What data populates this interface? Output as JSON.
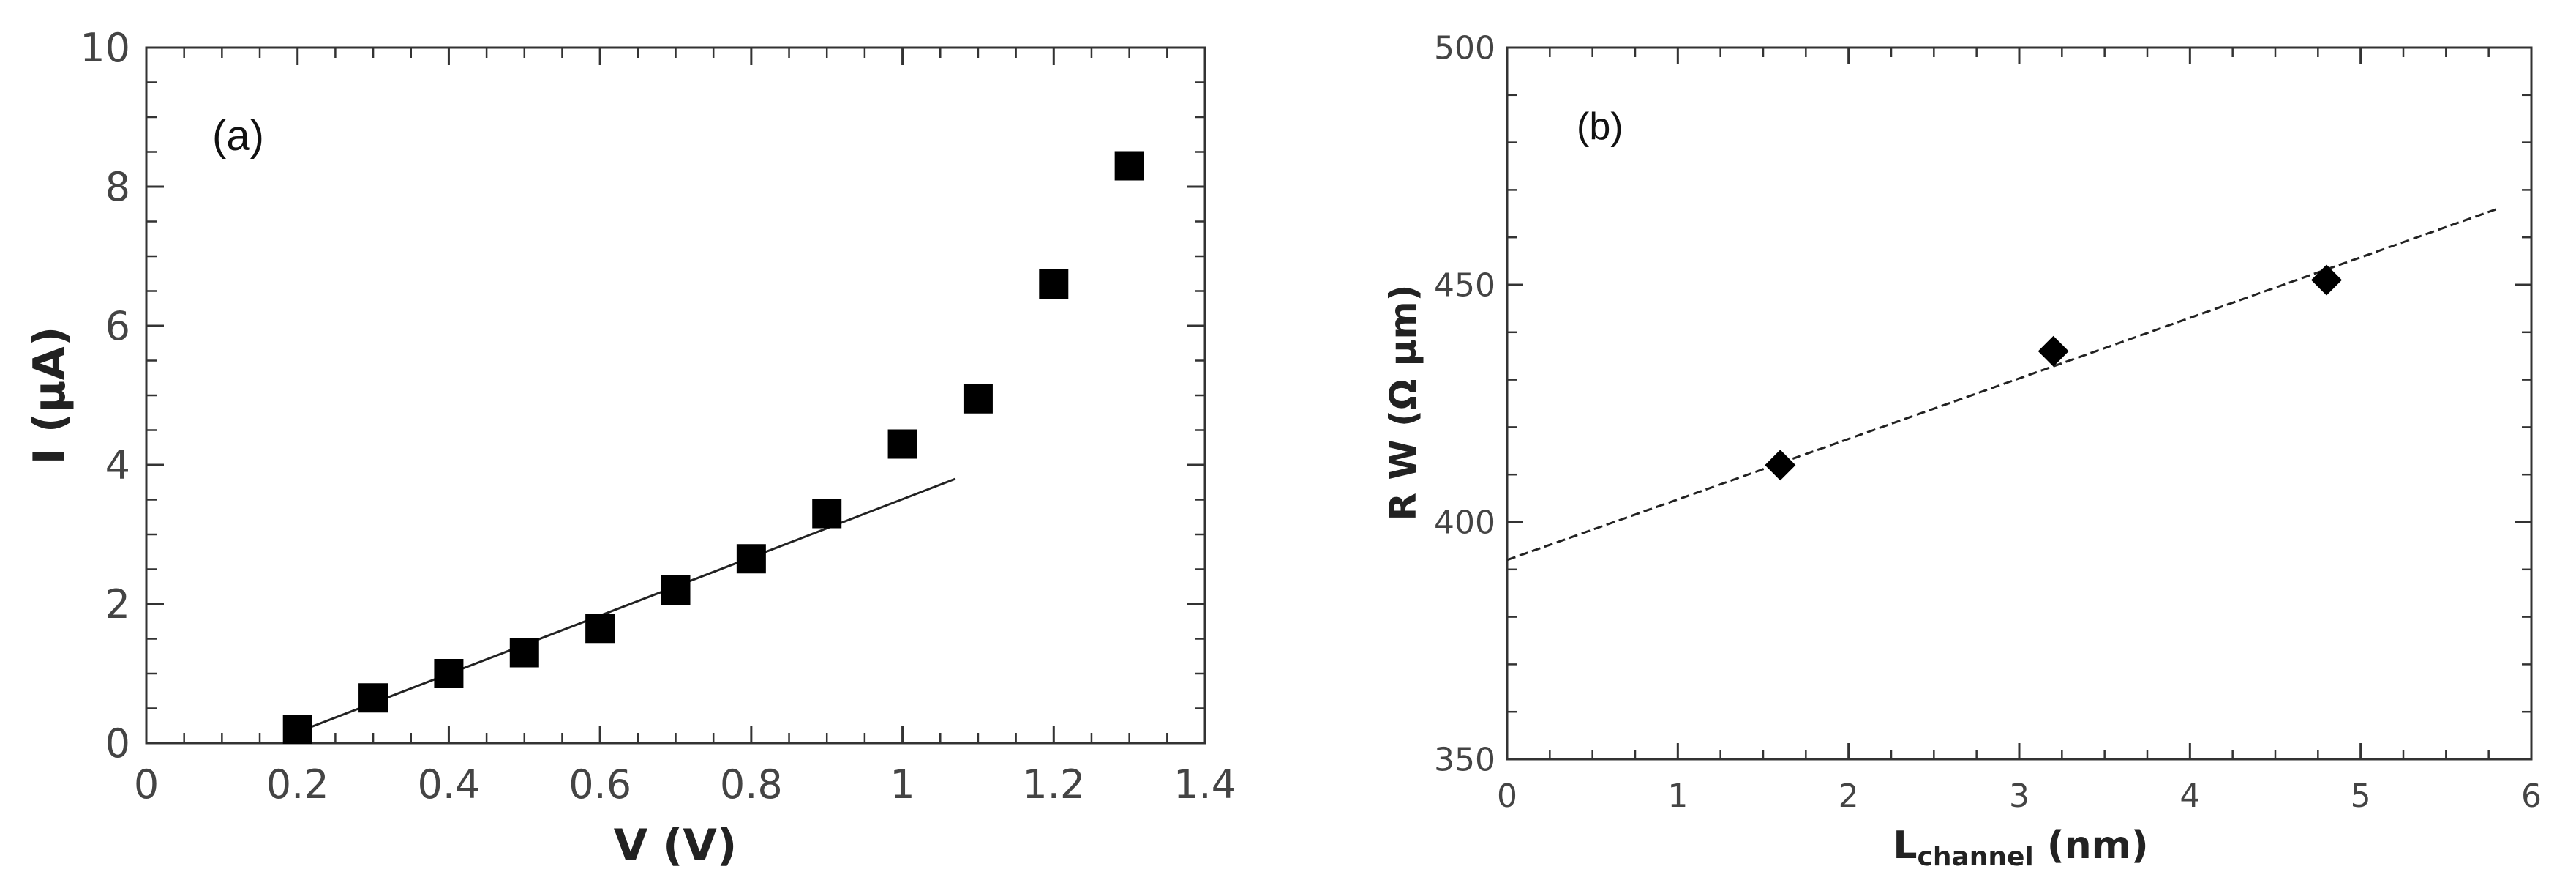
{
  "chart_data": [
    {
      "type": "scatter",
      "panel_label": "(a)",
      "xlabel": "V (V)",
      "ylabel": "I (μA)",
      "xlim": [
        0,
        1.4
      ],
      "ylim": [
        0,
        10
      ],
      "xticks": [
        0,
        0.2,
        0.4,
        0.6,
        0.8,
        1.0,
        1.2,
        1.4
      ],
      "xtick_labels": [
        "0",
        "0.2",
        "0.4",
        "0.6",
        "0.8",
        "1",
        "1.2",
        "1.4"
      ],
      "yticks": [
        0,
        2,
        4,
        6,
        8,
        10
      ],
      "ytick_labels": [
        "0",
        "2",
        "4",
        "6",
        "8",
        "10"
      ],
      "marker": "square",
      "points": {
        "x": [
          0.2,
          0.3,
          0.4,
          0.5,
          0.6,
          0.7,
          0.8,
          0.9,
          1.0,
          1.1,
          1.2,
          1.3
        ],
        "y": [
          0.2,
          0.65,
          1.0,
          1.3,
          1.65,
          2.2,
          2.65,
          3.3,
          4.3,
          4.95,
          6.6,
          8.3
        ]
      },
      "fit_line": {
        "x": [
          0.21,
          1.07
        ],
        "y": [
          0.2,
          3.8
        ],
        "style": "solid"
      },
      "grid": false
    },
    {
      "type": "scatter",
      "panel_label": "(b)",
      "xlabel_main": "L",
      "xlabel_sub": "channel",
      "xlabel_unit": " (nm)",
      "ylabel": "R W (Ω μm)",
      "xlim": [
        0,
        6
      ],
      "ylim": [
        350,
        500
      ],
      "xticks": [
        0,
        1,
        2,
        3,
        4,
        5,
        6
      ],
      "xtick_labels": [
        "0",
        "1",
        "2",
        "3",
        "4",
        "5",
        "6"
      ],
      "yticks": [
        350,
        400,
        450,
        500
      ],
      "ytick_labels": [
        "350",
        "400",
        "450",
        "500"
      ],
      "marker": "diamond",
      "points": {
        "x": [
          1.6,
          3.2,
          4.8
        ],
        "y": [
          412,
          436,
          451
        ]
      },
      "fit_line": {
        "x": [
          0,
          5.8
        ],
        "y": [
          392,
          466
        ],
        "style": "dashed"
      },
      "grid": false
    }
  ]
}
